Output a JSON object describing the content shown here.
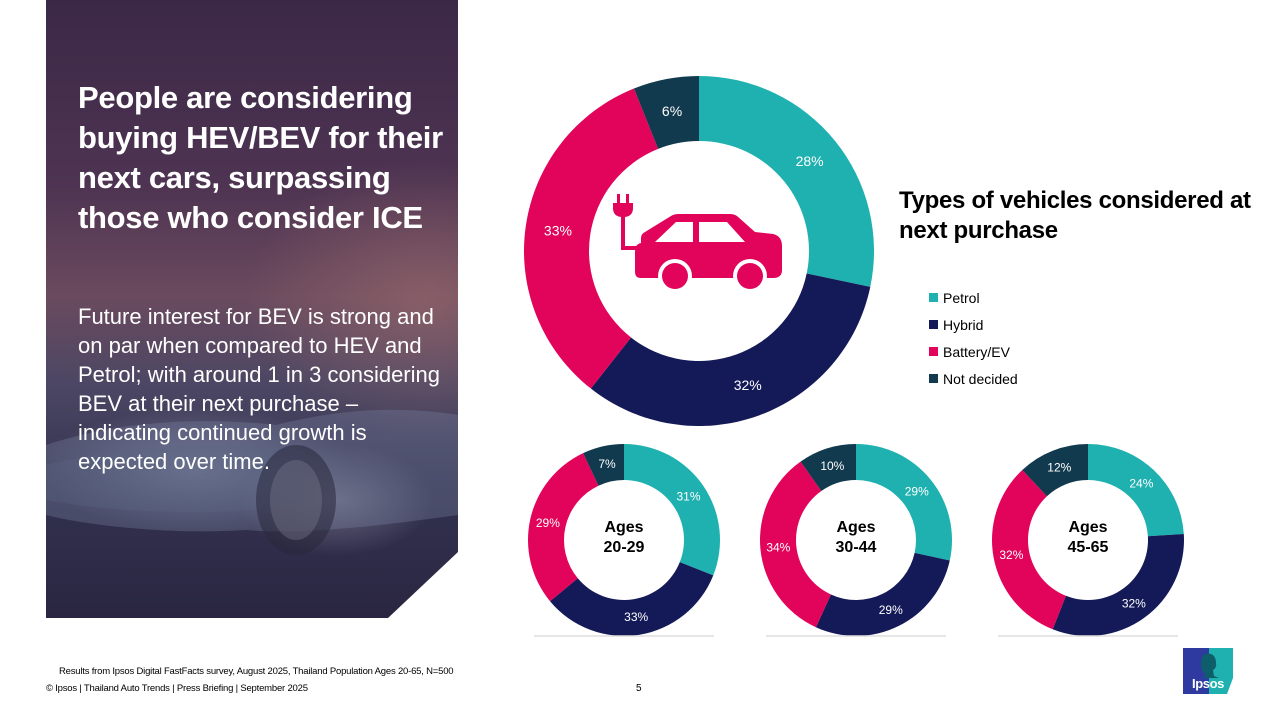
{
  "hero": {
    "title": "People are considering buying HEV/BEV for their next cars, surpassing those who consider ICE",
    "body": "Future interest for BEV is strong and on par when compared to HEV and Petrol; with around 1 in 3 considering BEV at their next purchase – indicating continued growth is expected over time."
  },
  "colors": {
    "petrol": "#1fb1b0",
    "hybrid": "#141a57",
    "battery_ev": "#e2045a",
    "not_decided": "#123a4e"
  },
  "chart_data": [
    {
      "type": "pie",
      "title": "Types of vehicles considered at next purchase",
      "center_icon": "electric-car-icon",
      "categories": [
        "Petrol",
        "Hybrid",
        "Battery/EV",
        "Not decided"
      ],
      "values": [
        28,
        32,
        33,
        6
      ],
      "labels": [
        "28%",
        "32%",
        "33%",
        "6%"
      ],
      "legend_position": "right"
    },
    {
      "type": "pie",
      "title": "Ages 20-29",
      "center_label": [
        "Ages",
        "20-29"
      ],
      "categories": [
        "Petrol",
        "Hybrid",
        "Battery/EV",
        "Not decided"
      ],
      "values": [
        31,
        33,
        29,
        7
      ],
      "labels": [
        "31%",
        "33%",
        "29%",
        "7%"
      ]
    },
    {
      "type": "pie",
      "title": "Ages 30-44",
      "center_label": [
        "Ages",
        "30-44"
      ],
      "categories": [
        "Petrol",
        "Hybrid",
        "Battery/EV",
        "Not decided"
      ],
      "values": [
        29,
        29,
        34,
        10
      ],
      "labels": [
        "29%",
        "29%",
        "34%",
        "10%"
      ]
    },
    {
      "type": "pie",
      "title": "Ages 45-65",
      "center_label": [
        "Ages",
        "45-65"
      ],
      "categories": [
        "Petrol",
        "Hybrid",
        "Battery/EV",
        "Not decided"
      ],
      "values": [
        24,
        32,
        32,
        12
      ],
      "labels": [
        "24%",
        "32%",
        "32%",
        "12%"
      ]
    }
  ],
  "legend": {
    "title": "Types of vehicles considered at next purchase",
    "items": [
      {
        "label": "Petrol",
        "color": "#1fb1b0"
      },
      {
        "label": "Hybrid",
        "color": "#141a57"
      },
      {
        "label": "Battery/EV",
        "color": "#e2045a"
      },
      {
        "label": "Not decided",
        "color": "#123a4e"
      }
    ]
  },
  "footer": {
    "source": "Results from Ipsos Digital FastFacts survey, August 2025, Thailand Population Ages 20-65, N=500",
    "copyright": "© Ipsos | Thailand Auto Trends | Press Briefing | September 2025",
    "page_number": "5",
    "logo_text": "Ipsos"
  }
}
